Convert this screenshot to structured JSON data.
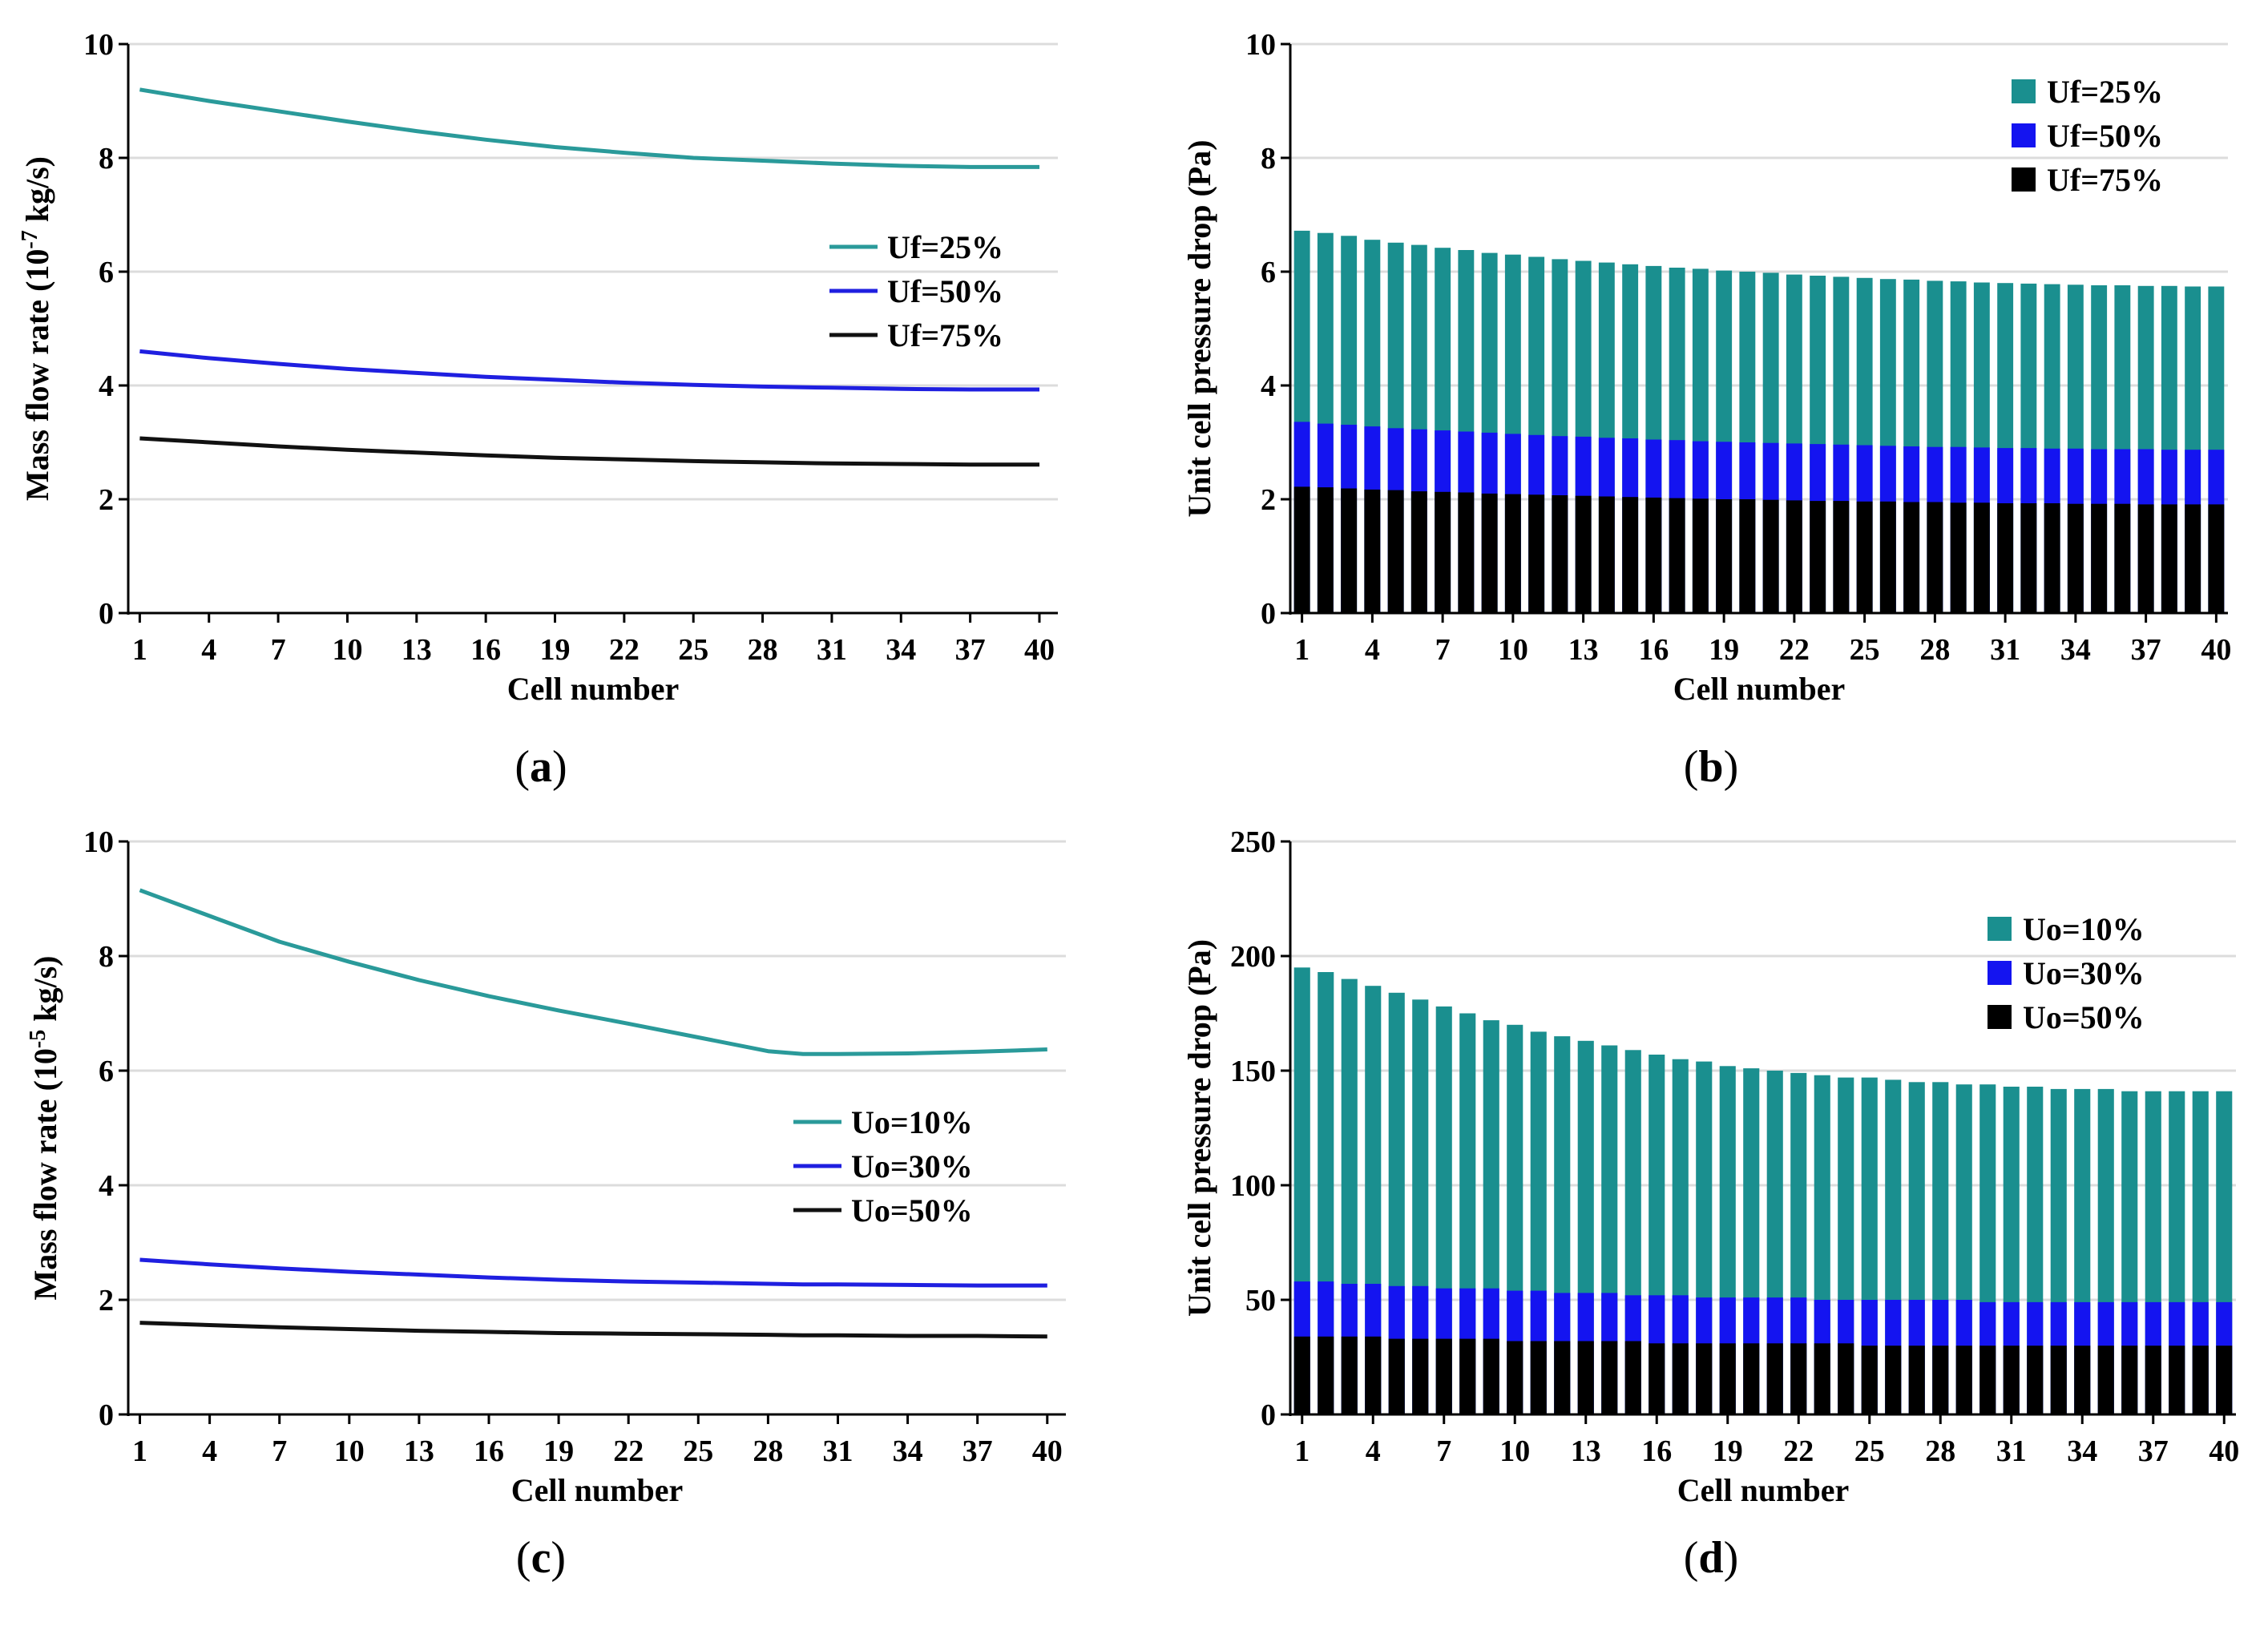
{
  "chart_data": [
    {
      "panel_label": "a",
      "type": "line",
      "xlabel": "Cell number",
      "ylabel_parts": [
        "Mass flow rate (10",
        "-7",
        " kg/s)"
      ],
      "ylim": [
        0,
        10
      ],
      "yticks": [
        0,
        2,
        4,
        6,
        8,
        10
      ],
      "xticks": [
        1,
        4,
        7,
        10,
        13,
        16,
        19,
        22,
        25,
        28,
        31,
        34,
        37,
        40
      ],
      "xlim": [
        0.5,
        40.8
      ],
      "grid": "horizontal",
      "legend_position": "right-middle",
      "x": [
        1,
        4,
        7,
        10,
        13,
        16,
        19,
        22,
        25,
        28,
        31,
        34,
        37,
        40
      ],
      "series": [
        {
          "name": "Uf=25%",
          "color": "#2a9a9a",
          "values": [
            9.2,
            9.0,
            8.82,
            8.64,
            8.47,
            8.32,
            8.19,
            8.09,
            8.0,
            7.95,
            7.9,
            7.86,
            7.84,
            7.84
          ]
        },
        {
          "name": "Uf=50%",
          "color": "#1f1fe0",
          "values": [
            4.6,
            4.48,
            4.38,
            4.29,
            4.22,
            4.15,
            4.1,
            4.05,
            4.01,
            3.98,
            3.96,
            3.94,
            3.93,
            3.93
          ]
        },
        {
          "name": "Uf=75%",
          "color": "#111111",
          "values": [
            3.07,
            3.0,
            2.93,
            2.87,
            2.82,
            2.77,
            2.73,
            2.7,
            2.67,
            2.65,
            2.63,
            2.62,
            2.61,
            2.61
          ]
        }
      ]
    },
    {
      "panel_label": "b",
      "type": "bar",
      "xlabel": "Cell number",
      "ylabel": "Unit cell pressure drop (Pa)",
      "ylim": [
        0,
        10
      ],
      "yticks": [
        0,
        2,
        4,
        6,
        8,
        10
      ],
      "xticks": [
        1,
        4,
        7,
        10,
        13,
        16,
        19,
        22,
        25,
        28,
        31,
        34,
        37,
        40
      ],
      "grid": "horizontal",
      "legend_position": "top-right",
      "categories": [
        1,
        2,
        3,
        4,
        5,
        6,
        7,
        8,
        9,
        10,
        11,
        12,
        13,
        14,
        15,
        16,
        17,
        18,
        19,
        20,
        21,
        22,
        23,
        24,
        25,
        26,
        27,
        28,
        29,
        30,
        31,
        32,
        33,
        34,
        35,
        36,
        37,
        38,
        39,
        40
      ],
      "series": [
        {
          "name": "Uf=25%",
          "color": "#1a8f8f",
          "values": [
            6.72,
            6.68,
            6.63,
            6.56,
            6.51,
            6.47,
            6.42,
            6.38,
            6.33,
            6.3,
            6.26,
            6.22,
            6.19,
            6.16,
            6.13,
            6.1,
            6.07,
            6.05,
            6.02,
            6.0,
            5.98,
            5.95,
            5.93,
            5.91,
            5.89,
            5.87,
            5.86,
            5.84,
            5.83,
            5.81,
            5.8,
            5.79,
            5.78,
            5.77,
            5.76,
            5.76,
            5.75,
            5.75,
            5.74,
            5.74
          ]
        },
        {
          "name": "Uf=50%",
          "color": "#1414f0",
          "values": [
            3.36,
            3.33,
            3.31,
            3.28,
            3.25,
            3.23,
            3.21,
            3.19,
            3.17,
            3.15,
            3.13,
            3.11,
            3.1,
            3.08,
            3.07,
            3.05,
            3.04,
            3.02,
            3.01,
            3.0,
            2.99,
            2.98,
            2.97,
            2.96,
            2.95,
            2.94,
            2.93,
            2.92,
            2.92,
            2.91,
            2.9,
            2.9,
            2.89,
            2.89,
            2.88,
            2.88,
            2.88,
            2.87,
            2.87,
            2.87
          ]
        },
        {
          "name": "Uf=75%",
          "color": "#000000",
          "values": [
            2.22,
            2.21,
            2.19,
            2.17,
            2.16,
            2.14,
            2.13,
            2.12,
            2.1,
            2.09,
            2.08,
            2.07,
            2.06,
            2.05,
            2.04,
            2.03,
            2.02,
            2.01,
            2.0,
            2.0,
            1.99,
            1.98,
            1.97,
            1.97,
            1.96,
            1.96,
            1.95,
            1.95,
            1.94,
            1.94,
            1.93,
            1.93,
            1.93,
            1.92,
            1.92,
            1.92,
            1.91,
            1.91,
            1.91,
            1.91
          ]
        }
      ]
    },
    {
      "panel_label": "c",
      "type": "line",
      "xlabel": "Cell number",
      "ylabel_parts": [
        "Mass flow rate (10",
        "-5",
        " kg/s)"
      ],
      "ylim": [
        0,
        10
      ],
      "yticks": [
        0,
        2,
        4,
        6,
        8,
        10
      ],
      "xticks": [
        1,
        4,
        7,
        10,
        13,
        16,
        19,
        22,
        25,
        28,
        31,
        34,
        37,
        40
      ],
      "xlim": [
        0.5,
        40.8
      ],
      "grid": "horizontal",
      "legend_position": "right-middle",
      "x": [
        1,
        4,
        7,
        10,
        13,
        16,
        19,
        22,
        25,
        28,
        29.5,
        31,
        34,
        37,
        40
      ],
      "series": [
        {
          "name": "Uo=10%",
          "color": "#2a9a9a",
          "values": [
            9.15,
            8.7,
            8.25,
            7.9,
            7.58,
            7.3,
            7.05,
            6.82,
            6.58,
            6.34,
            6.29,
            6.29,
            6.3,
            6.33,
            6.37
          ]
        },
        {
          "name": "Uo=30%",
          "color": "#1f1fe0",
          "values": [
            2.7,
            2.62,
            2.55,
            2.49,
            2.44,
            2.39,
            2.35,
            2.32,
            2.3,
            2.28,
            2.27,
            2.27,
            2.26,
            2.25,
            2.25
          ]
        },
        {
          "name": "Uo=50%",
          "color": "#111111",
          "values": [
            1.6,
            1.56,
            1.52,
            1.49,
            1.46,
            1.44,
            1.42,
            1.41,
            1.4,
            1.39,
            1.38,
            1.38,
            1.37,
            1.37,
            1.36
          ]
        }
      ]
    },
    {
      "panel_label": "d",
      "type": "bar",
      "xlabel": "Cell number",
      "ylabel": "Unit cell pressure drop (Pa)",
      "ylim": [
        0,
        250
      ],
      "yticks": [
        0,
        50,
        100,
        150,
        200,
        250
      ],
      "xticks": [
        1,
        4,
        7,
        10,
        13,
        16,
        19,
        22,
        25,
        28,
        31,
        34,
        37,
        40
      ],
      "grid": "horizontal",
      "legend_position": "top-right",
      "categories": [
        1,
        2,
        3,
        4,
        5,
        6,
        7,
        8,
        9,
        10,
        11,
        12,
        13,
        14,
        15,
        16,
        17,
        18,
        19,
        20,
        21,
        22,
        23,
        24,
        25,
        26,
        27,
        28,
        29,
        30,
        31,
        32,
        33,
        34,
        35,
        36,
        37,
        38,
        39,
        40
      ],
      "series": [
        {
          "name": "Uo=10%",
          "color": "#1a8f8f",
          "values": [
            195,
            193,
            190,
            187,
            184,
            181,
            178,
            175,
            172,
            170,
            167,
            165,
            163,
            161,
            159,
            157,
            155,
            154,
            152,
            151,
            150,
            149,
            148,
            147,
            147,
            146,
            145,
            145,
            144,
            144,
            143,
            143,
            142,
            142,
            142,
            141,
            141,
            141,
            141,
            141
          ]
        },
        {
          "name": "Uo=30%",
          "color": "#1414f0",
          "values": [
            58,
            58,
            57,
            57,
            56,
            56,
            55,
            55,
            55,
            54,
            54,
            53,
            53,
            53,
            52,
            52,
            52,
            51,
            51,
            51,
            51,
            51,
            50,
            50,
            50,
            50,
            50,
            50,
            50,
            49,
            49,
            49,
            49,
            49,
            49,
            49,
            49,
            49,
            49,
            49
          ]
        },
        {
          "name": "Uo=50%",
          "color": "#000000",
          "values": [
            34,
            34,
            34,
            34,
            33,
            33,
            33,
            33,
            33,
            32,
            32,
            32,
            32,
            32,
            32,
            31,
            31,
            31,
            31,
            31,
            31,
            31,
            31,
            31,
            30,
            30,
            30,
            30,
            30,
            30,
            30,
            30,
            30,
            30,
            30,
            30,
            30,
            30,
            30,
            30
          ]
        }
      ]
    }
  ]
}
